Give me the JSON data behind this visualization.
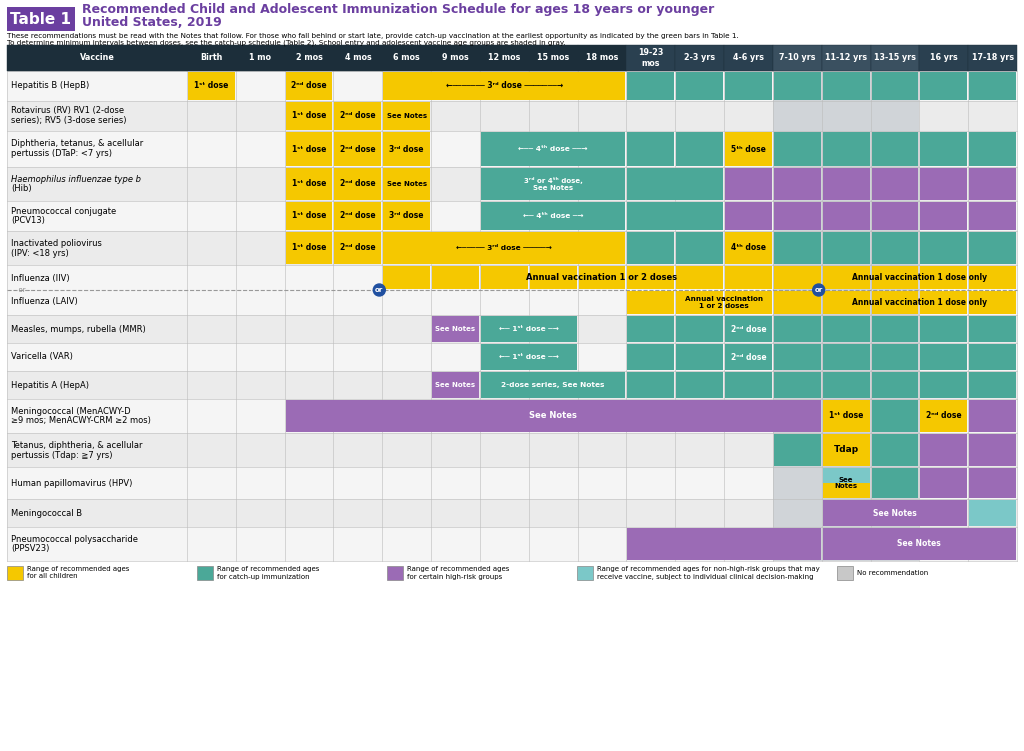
{
  "colors": {
    "yellow": "#F5C800",
    "teal": "#4BA898",
    "purple": "#9B6BB5",
    "light_blue": "#7BC8C8",
    "gray": "#C8C8C8",
    "header_bg": "#1C2E3A",
    "title_purple": "#6B3FA0",
    "table1_bg": "#6B3FA0",
    "white": "#FFFFFF",
    "row_even": "#F5F5F5",
    "row_odd": "#EBEBEB",
    "gray_col_bg": "#D0D4D8"
  },
  "title_line1": "Recommended Child and Adolescent Immunization Schedule for ages 18 years or younger",
  "title_line2": "United States, 2019",
  "subtitle1": "These recommendations must be read with the Notes that follow. For those who fall behind or start late, provide catch-up vaccination at the earliest opportunity as indicated by the green bars in Table 1.",
  "subtitle2": "To determine minimum intervals between doses, see the catch-up schedule (Table 2). School entry and adolescent vaccine age groups are shaded in gray.",
  "col_headers": [
    "Vaccine",
    "Birth",
    "1 mo",
    "2 mos",
    "4 mos",
    "6 mos",
    "9 mos",
    "12 mos",
    "15 mos",
    "18 mos",
    "19-23\nmos",
    "2-3 yrs",
    "4-6 yrs",
    "7-10 yrs",
    "11-12 yrs",
    "13-15 yrs",
    "16 yrs",
    "17-18 yrs"
  ],
  "vaccines": [
    "Hepatitis B (HepB)",
    "Rotavirus (RV) RV1 (2-dose\nseries); RV5 (3-dose series)",
    "Diphtheria, tetanus, & acellular\npertussis (DTaP: <7 yrs)",
    "Haemophilus influenzae type b\n(Hib)",
    "Pneumococcal conjugate\n(PCV13)",
    "Inactivated poliovirus\n(IPV: <18 yrs)",
    "Influenza (IIV) / Influenza (LAIV)",
    "Measles, mumps, rubella (MMR)",
    "Varicella (VAR)",
    "Hepatitis A (HepA)",
    "Meningococcal (MenACWY-D\n≥9 mos; MenACWY-CRM ≥2 mos)",
    "Tetanus, diphtheria, & acellular\npertussis (Tdap: ≧7 yrs)",
    "Human papillomavirus (HPV)",
    "Meningococcal B",
    "Pneumococcal polysaccharide\n(PPSV23)"
  ],
  "legend": [
    {
      "color": "#F5C800",
      "label": "Range of recommended ages\nfor all children"
    },
    {
      "color": "#4BA898",
      "label": "Range of recommended ages\nfor catch-up immunization"
    },
    {
      "color": "#9B6BB5",
      "label": "Range of recommended ages\nfor certain high-risk groups"
    },
    {
      "color": "#7BC8C8",
      "label": "Range of recommended ages for non-high-risk groups that may\nreceive vaccine, subject to individual clinical decision-making"
    },
    {
      "color": "#C8C8C8",
      "label": "No recommendation"
    }
  ]
}
